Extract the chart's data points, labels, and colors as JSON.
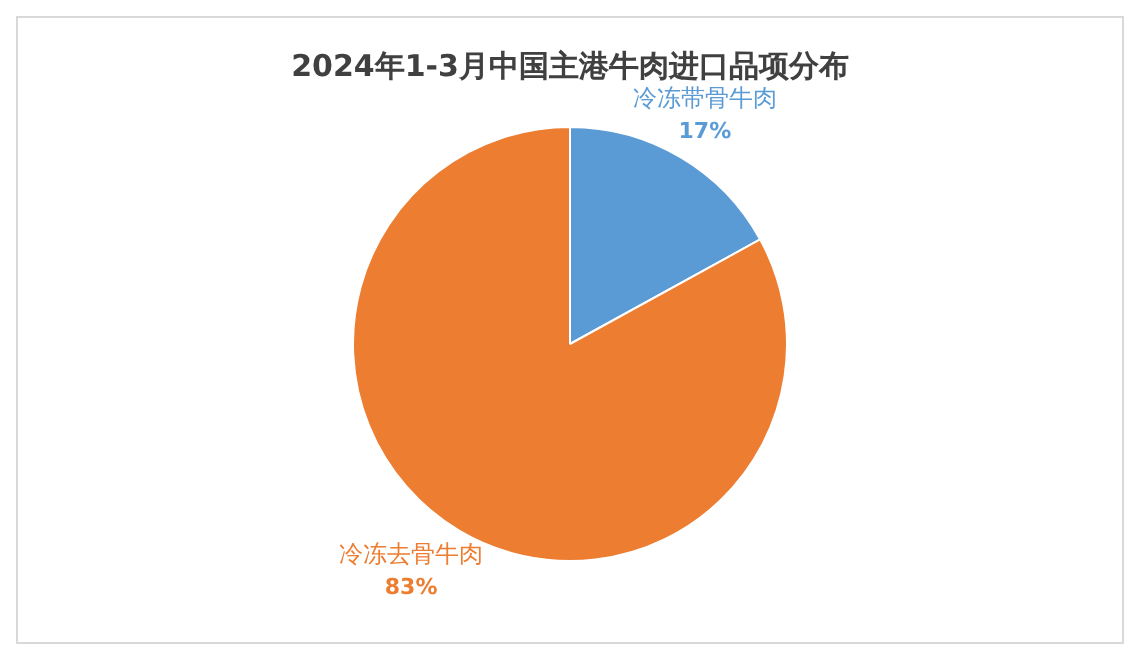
{
  "chart_data": {
    "type": "pie",
    "title": "2024年1-3月中国主港牛肉进口品项分布",
    "categories": [
      "冷冻带骨牛肉",
      "冷冻去骨牛肉"
    ],
    "values": [
      17,
      83
    ],
    "colors": [
      "#5b9bd5",
      "#ed7d31"
    ],
    "value_labels": [
      "17%",
      "83%"
    ],
    "legend": false
  }
}
